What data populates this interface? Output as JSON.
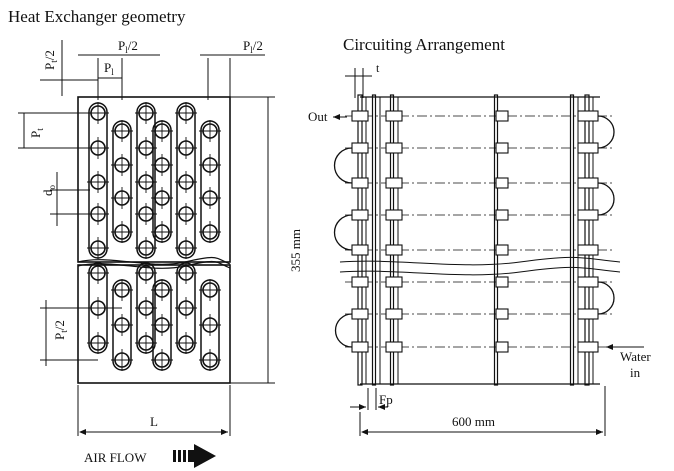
{
  "left_panel": {
    "title": "Heat Exchanger geometry",
    "label_pt2_top": "P",
    "label_pt2_top_sub": "t",
    "label_pt2_top_suffix": "/2",
    "label_pl2_mid": "P",
    "label_pl2_mid_sub": "l",
    "label_pl2_mid_suffix": "/2",
    "label_pl2_right": "P",
    "label_pl2_right_sub": "l",
    "label_pl2_right_suffix": "/2",
    "label_pl": "P",
    "label_pl_sub": "l",
    "label_pt": "P",
    "label_pt_sub": "t",
    "label_do": "d",
    "label_do_sub": "o",
    "label_pt2_low": "P",
    "label_pt2_low_sub": "t",
    "label_pt2_low_suffix": "/2",
    "height_label": "355 mm",
    "width_label": "L",
    "air_flow_label": "AIR FLOW"
  },
  "right_panel": {
    "title": "Circuiting Arrangement",
    "label_t": "t",
    "label_out": "Out",
    "label_water": "Water",
    "label_in": "in",
    "label_fp": "Fp",
    "width_label": "600 mm"
  }
}
